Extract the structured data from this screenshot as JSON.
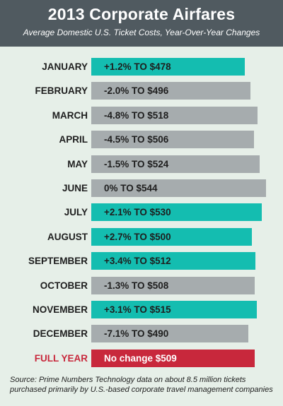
{
  "header": {
    "title": "2013 Corporate Airfares",
    "subtitle": "Average Domestic U.S. Ticket Costs, Year-Over-Year Changes"
  },
  "colors": {
    "increase": "#14bdb0",
    "decrease": "#a6acae",
    "total": "#c8283c"
  },
  "chart_data": {
    "type": "bar",
    "orientation": "horizontal",
    "title": "2013 Corporate Airfares",
    "subtitle": "Average Domestic U.S. Ticket Costs, Year-Over-Year Changes",
    "categories": [
      "JANUARY",
      "FEBRUARY",
      "MARCH",
      "APRIL",
      "MAY",
      "JUNE",
      "JULY",
      "AUGUST",
      "SEPTEMBER",
      "OCTOBER",
      "NOVEMBER",
      "DECEMBER",
      "FULL YEAR"
    ],
    "values": [
      478,
      496,
      518,
      506,
      524,
      544,
      530,
      500,
      512,
      508,
      515,
      490,
      509
    ],
    "changes": [
      "+1.2%",
      "-2.0%",
      "-4.8%",
      "-4.5%",
      "-1.5%",
      "0%",
      "+2.1%",
      "+2.7%",
      "+3.4%",
      "-1.3%",
      "+3.1%",
      "-7.1%",
      "No change"
    ],
    "labels": [
      "+1.2% TO $478",
      "-2.0% TO $496",
      "-4.8% TO $518",
      "-4.5% TO $506",
      "-1.5% TO $524",
      "0% TO $544",
      "+2.1% TO $530",
      "+2.7% TO $500",
      "+3.4% TO $512",
      "-1.3% TO $508",
      "+3.1% TO $515",
      "-7.1% TO $490",
      "No change $509"
    ],
    "status": [
      "increase",
      "decrease",
      "decrease",
      "decrease",
      "decrease",
      "decrease",
      "increase",
      "increase",
      "increase",
      "decrease",
      "increase",
      "decrease",
      "total"
    ],
    "xlim": [
      0,
      544
    ],
    "grid": false,
    "legend": "none"
  },
  "source": "Source: Prime Numbers Technology data on about 8.5 million tickets purchased primarily by U.S.-based corporate travel management companies"
}
